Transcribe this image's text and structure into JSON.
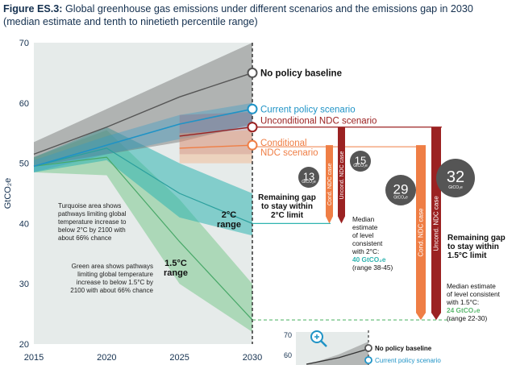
{
  "caption": {
    "label": "Figure ES.3:",
    "text": " Global greenhouse gas emissions under different scenarios and the emissions gap in 2030 (median estimate and tenth to ninetieth percentile range)"
  },
  "colors": {
    "baseline": "#555555",
    "current_policy": "#1f93c6",
    "unconditional_ndc": "#9b2222",
    "conditional_ndc": "#ef7e45",
    "pathway_2c": "#2fb4b0",
    "pathway_15c": "#7cc98e",
    "axis_text": "#14304f"
  },
  "chart_data": {
    "type": "line",
    "ylabel": "GtCO₂e",
    "x_ticks": [
      2015,
      2020,
      2025,
      2030
    ],
    "y_ticks": [
      20,
      30,
      40,
      50,
      60,
      70
    ],
    "ylim": [
      20,
      70
    ],
    "xlim": [
      2015,
      2030
    ],
    "series": [
      {
        "name": "No policy baseline",
        "x": [
          2015,
          2020,
          2025,
          2030
        ],
        "median": [
          51.5,
          56,
          61,
          65
        ],
        "low": [
          49.5,
          51.5,
          53.5,
          56.5
        ],
        "high": [
          53.5,
          59,
          64.5,
          70
        ]
      },
      {
        "name": "Current policy scenario",
        "x": [
          2015,
          2020,
          2025,
          2030
        ],
        "median": [
          49.5,
          53,
          56.5,
          59
        ],
        "low": [
          48.5,
          51.5,
          54,
          56
        ],
        "high": [
          50.5,
          54.5,
          58,
          60
        ]
      },
      {
        "name": "Unconditional NDC scenario",
        "x": [
          2025,
          2030
        ],
        "median": [
          54.5,
          56
        ],
        "low": [
          51.5,
          51.5
        ],
        "high": [
          58,
          58.5
        ]
      },
      {
        "name": "Conditional NDC scenario",
        "x": [
          2025,
          2030
        ],
        "median": [
          52.5,
          53
        ],
        "low": [
          50,
          50
        ],
        "high": [
          55,
          55.5
        ]
      },
      {
        "name": "2°C range",
        "x": [
          2015,
          2020,
          2025,
          2030
        ],
        "median": [
          49.5,
          52.5,
          45,
          40
        ],
        "low": [
          48.5,
          50.5,
          41,
          38
        ],
        "high": [
          51,
          56,
          50,
          45
        ]
      },
      {
        "name": "1.5°C range",
        "x": [
          2015,
          2020,
          2025,
          2030
        ],
        "median": [
          49.5,
          51,
          37,
          24
        ],
        "low": [
          48.5,
          48,
          30,
          22
        ],
        "high": [
          51,
          55.5,
          44,
          30
        ]
      }
    ],
    "gaps": [
      {
        "label": "Cond. NDC case",
        "value": 13,
        "from": 53,
        "to": 40
      },
      {
        "label": "Uncond. NDC case",
        "value": 15,
        "from": 56,
        "to": 40
      },
      {
        "label": "Cond. NDC case",
        "value": 29,
        "from": 53,
        "to": 24
      },
      {
        "label": "Uncond. NDC case",
        "value": 32,
        "from": 56,
        "to": 24
      }
    ],
    "bubble_unit": "GtCO₂e",
    "gap_2c_label": [
      "Remaining gap",
      "to stay within",
      "2°C limit"
    ],
    "gap_15c_label": [
      "Remaining gap",
      "to stay within",
      "1.5°C limit"
    ],
    "median_2c": {
      "lines": [
        "Median",
        "estimate",
        "of level",
        "consistent",
        "with 2°C:"
      ],
      "value": "40 GtCO₂e",
      "range": "(range 38-45)"
    },
    "median_15c": {
      "lines": [
        "Median estimate",
        "of level consistent",
        "with 1.5°C:"
      ],
      "value": "24 GtCO₂e",
      "range": "(range 22-30)"
    },
    "label_2c_range": [
      "2°C",
      "range"
    ],
    "label_15c_range": [
      "1.5°C",
      "range"
    ],
    "note_turquoise": [
      "Turquoise area shows",
      "pathways limiting global",
      "temperature increase to",
      "below 2°C by 2100 with",
      "about 66% chance"
    ],
    "note_green": [
      "Green area shows pathways",
      "limiting global temperature",
      "increase to below 1.5°C by",
      "2100 with about 66% chance"
    ]
  },
  "inset": {
    "y_ticks": [
      70,
      60
    ],
    "labels": [
      "No policy baseline",
      "Current policy scenario"
    ]
  }
}
